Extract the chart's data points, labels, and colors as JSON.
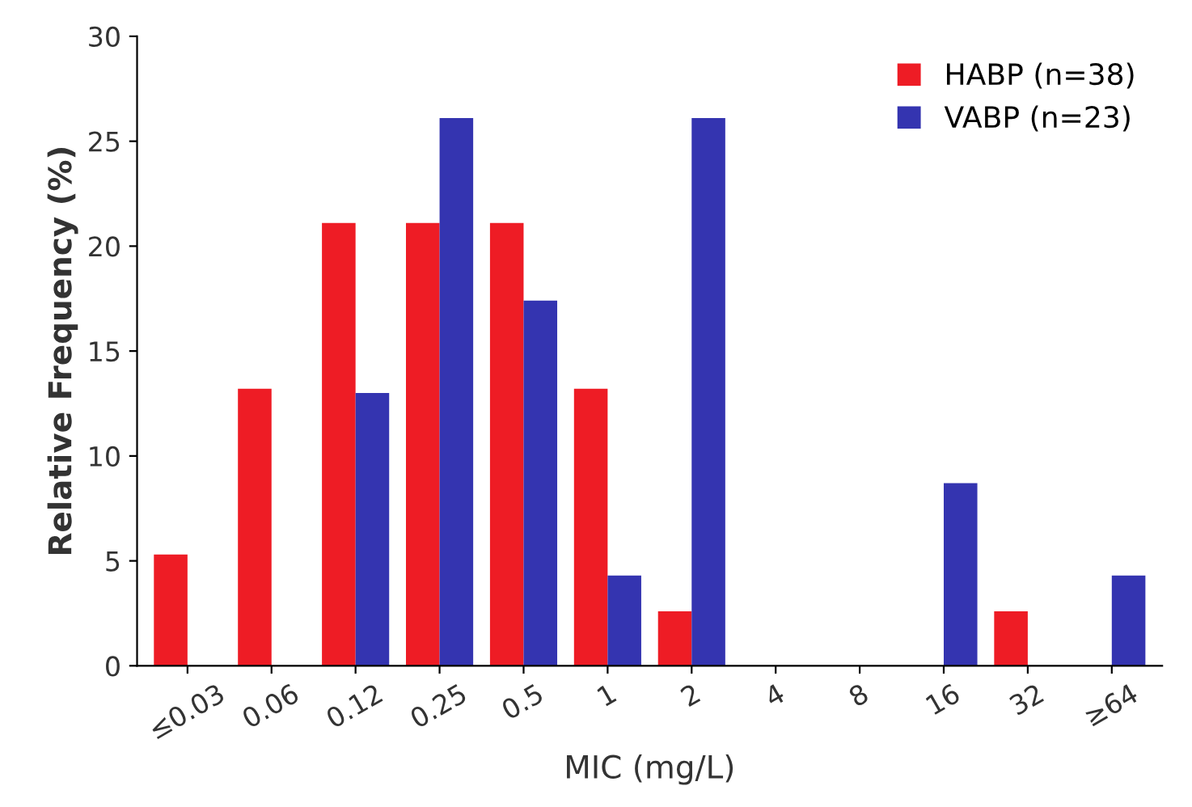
{
  "chart_data": {
    "type": "bar",
    "xlabel": "MIC (mg/L)",
    "ylabel": "Relative Frequency (%)",
    "categories": [
      "≤0.03",
      "0.06",
      "0.12",
      "0.25",
      "0.5",
      "1",
      "2",
      "4",
      "8",
      "16",
      "32",
      "≥64"
    ],
    "series": [
      {
        "name": "HABP (n=38)",
        "color": "#ee1c25",
        "values": [
          5.3,
          13.2,
          21.1,
          21.1,
          21.1,
          13.2,
          2.6,
          0,
          0,
          0,
          2.6,
          0
        ]
      },
      {
        "name": "VABP (n=23)",
        "color": "#3434b0",
        "values": [
          0,
          0,
          13.0,
          26.1,
          17.4,
          4.3,
          26.1,
          0,
          0,
          8.7,
          0,
          4.3
        ]
      }
    ],
    "ylim": [
      0,
      30
    ],
    "yticks": [
      0,
      5,
      10,
      15,
      20,
      25,
      30
    ],
    "grid": false,
    "legend": "top right"
  }
}
